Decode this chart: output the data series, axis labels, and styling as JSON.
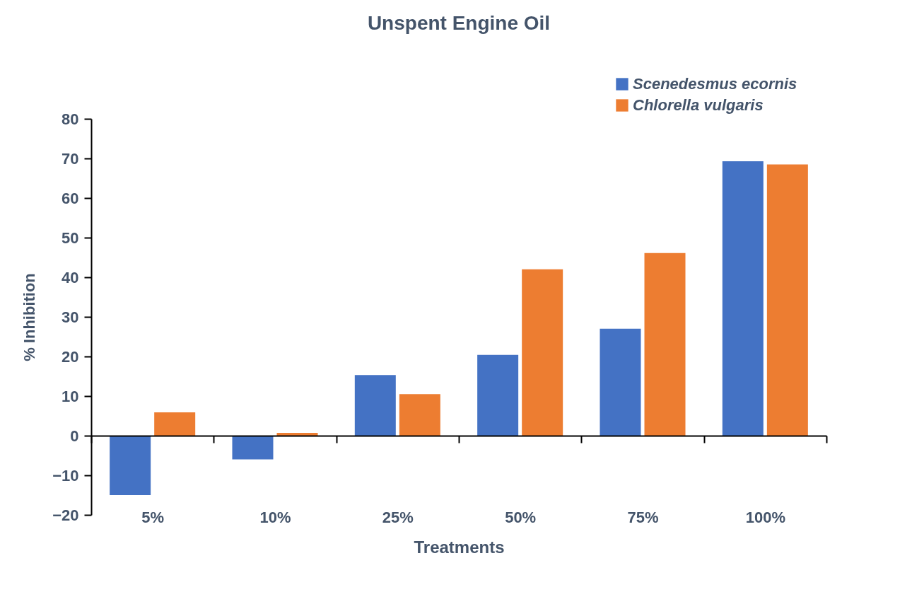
{
  "chart_data": {
    "type": "bar",
    "title": "Unspent Engine Oil",
    "xlabel": "Treatments",
    "ylabel": "% Inhibition",
    "categories": [
      "5%",
      "10%",
      "25%",
      "50%",
      "75%",
      "100%"
    ],
    "series": [
      {
        "name": "Scenedesmus ecornis",
        "color": "#4472c4",
        "values": [
          -15.0,
          -6.0,
          15.3,
          20.4,
          27.0,
          69.3
        ]
      },
      {
        "name": "Chlorella vulgaris",
        "color": "#ed7d31",
        "values": [
          5.9,
          0.7,
          10.5,
          42.0,
          46.1,
          68.5
        ]
      }
    ],
    "ylim": [
      -20,
      80
    ],
    "yticks": [
      -20,
      -10,
      0,
      10,
      20,
      30,
      40,
      50,
      60,
      70,
      80
    ],
    "legend": "top right"
  }
}
